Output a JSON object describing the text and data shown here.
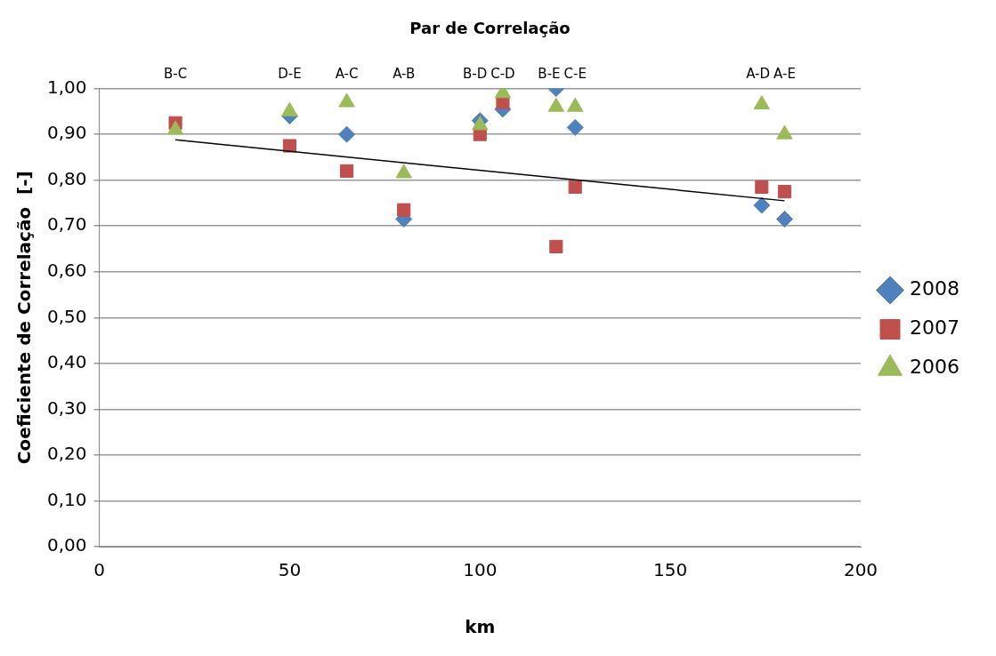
{
  "chart_data": {
    "type": "scatter",
    "title": "Par de Correlação",
    "xlabel": "km",
    "ylabel": "Coeficiente de Correlação  [-]",
    "x": [
      20,
      50,
      65,
      80,
      100,
      106,
      120,
      125,
      174,
      180
    ],
    "series": [
      {
        "name": "2008",
        "color": "#4f81bd",
        "marker": "diamond",
        "values": [
          null,
          0.94,
          0.9,
          0.715,
          0.93,
          0.955,
          1.0,
          0.915,
          0.745,
          0.715
        ]
      },
      {
        "name": "2007",
        "color": "#c0504d",
        "marker": "square",
        "values": [
          0.925,
          0.875,
          0.82,
          0.735,
          0.9,
          0.97,
          0.655,
          0.785,
          0.785,
          0.775
        ]
      },
      {
        "name": "2006",
        "color": "#9bbb59",
        "marker": "triangle",
        "values": [
          0.91,
          0.95,
          0.97,
          0.815,
          0.92,
          0.99,
          0.96,
          0.96,
          0.965,
          0.9
        ]
      },
      {
        "type": "line",
        "color": "#000000",
        "marker": "none",
        "x": [
          20,
          180
        ],
        "values": [
          0.888,
          0.755
        ]
      }
    ],
    "annotations": [
      "B-C",
      "D-E",
      "A-C",
      "A-B",
      "B-D",
      "C-D",
      "B-E",
      "C-E",
      "A-D",
      "A-E"
    ],
    "xlim": [
      0,
      200
    ],
    "xticks": [
      0,
      50,
      100,
      150,
      200
    ],
    "ylim": [
      0,
      1
    ],
    "yticks": [
      {
        "value": 0,
        "label": "0,00"
      },
      {
        "value": 0.1,
        "label": "0,10"
      },
      {
        "value": 0.2,
        "label": "0,20"
      },
      {
        "value": 0.3,
        "label": "0,30"
      },
      {
        "value": 0.4,
        "label": "0,40"
      },
      {
        "value": 0.5,
        "label": "0,50"
      },
      {
        "value": 0.6,
        "label": "0,60"
      },
      {
        "value": 0.7,
        "label": "0,70"
      },
      {
        "value": 0.8,
        "label": "0,80"
      },
      {
        "value": 0.9,
        "label": "0,90"
      },
      {
        "value": 1,
        "label": "1,00"
      }
    ],
    "grid": "y",
    "legend": "right"
  }
}
